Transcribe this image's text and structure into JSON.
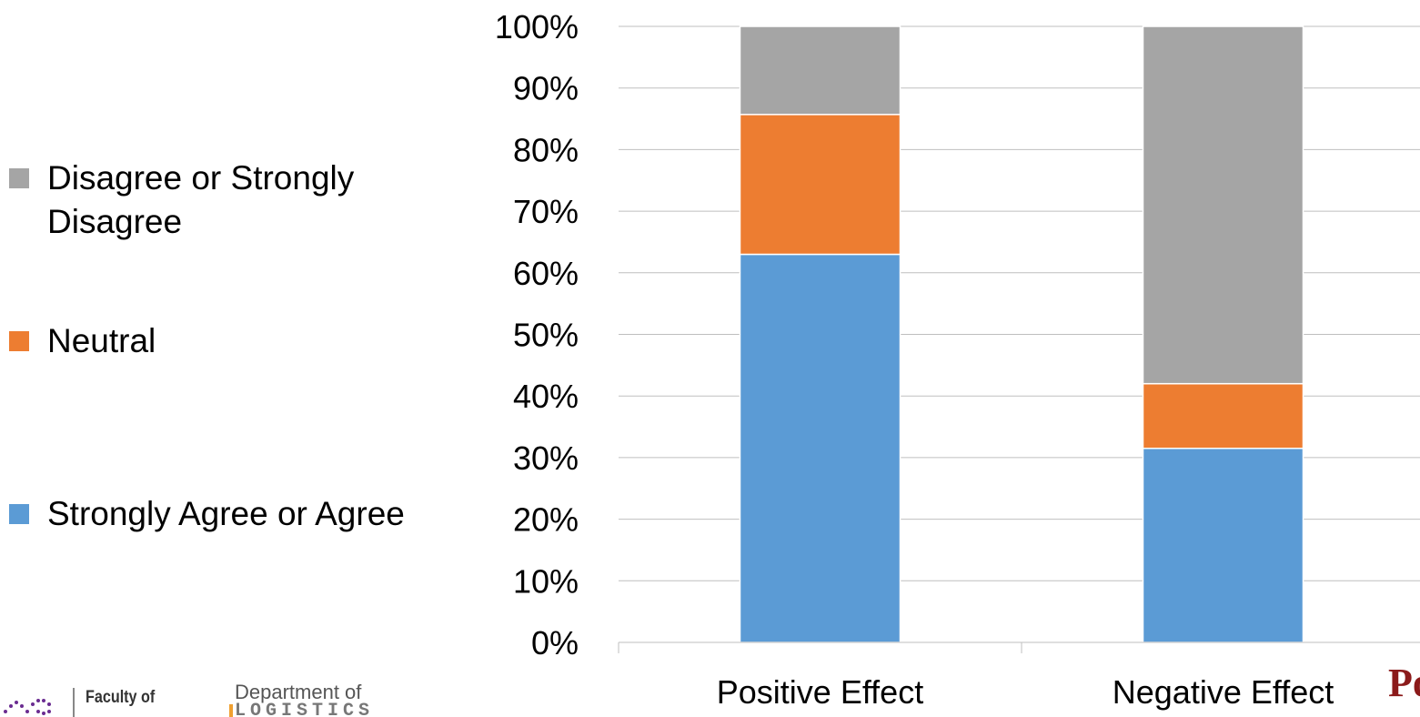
{
  "chart_data": {
    "type": "bar",
    "stacked": true,
    "categories": [
      "Positive Effect",
      "Negative Effect"
    ],
    "series": [
      {
        "name": "Strongly Agree or Agree",
        "color": "#5b9bd5",
        "values": [
          63,
          31.5
        ]
      },
      {
        "name": "Neutral",
        "color": "#ed7d31",
        "values": [
          22.7,
          10.5
        ]
      },
      {
        "name": "Disagree or Strongly Disagree",
        "color": "#a5a5a5",
        "values": [
          14.3,
          58
        ]
      }
    ],
    "yticks": [
      "0%",
      "10%",
      "20%",
      "30%",
      "40%",
      "50%",
      "60%",
      "70%",
      "80%",
      "90%",
      "100%"
    ],
    "ylim": [
      0,
      100
    ],
    "grid": true,
    "legend_position": "left"
  },
  "legend": {
    "items": [
      {
        "label": "Disagree or Strongly Disagree",
        "color": "#a5a5a5"
      },
      {
        "label": "Neutral",
        "color": "#ed7d31"
      },
      {
        "label": "Strongly Agree or Agree",
        "color": "#5b9bd5"
      }
    ]
  },
  "footer": {
    "faculty_text": "Faculty of",
    "dept_text": "Department of",
    "dept_sub": "LOGISTICS",
    "corner_text": "Po"
  }
}
